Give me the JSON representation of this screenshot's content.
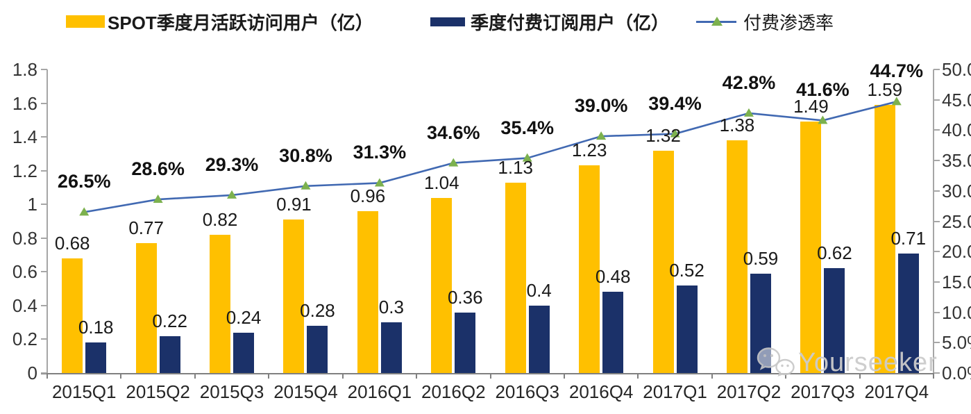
{
  "legend": {
    "items": [
      {
        "label": "SPOT季度月活跃访问用户（亿）",
        "type": "bar",
        "color": "#FFC000"
      },
      {
        "label": "季度付费订阅用户（亿）",
        "type": "bar",
        "color": "#1B3169"
      },
      {
        "label": "付费渗透率",
        "type": "line",
        "color": "#4169B2",
        "marker_color": "#7CB14E"
      }
    ]
  },
  "chart_data": {
    "type": "combo_bar_line",
    "categories": [
      "2015Q1",
      "2015Q2",
      "2015Q3",
      "2015Q4",
      "2016Q1",
      "2016Q2",
      "2016Q3",
      "2016Q4",
      "2017Q1",
      "2017Q2",
      "2017Q3",
      "2017Q4"
    ],
    "series": [
      {
        "name": "SPOT季度月活跃访问用户（亿）",
        "type": "bar",
        "axis": "left",
        "color": "#FFC000",
        "values": [
          0.68,
          0.77,
          0.82,
          0.91,
          0.96,
          1.04,
          1.13,
          1.23,
          1.32,
          1.38,
          1.49,
          1.59
        ],
        "labels": [
          "0.68",
          "0.77",
          "0.82",
          "0.91",
          "0.96",
          "1.04",
          "1.13",
          "1.23",
          "1.32",
          "1.38",
          "1.49",
          "1.59"
        ]
      },
      {
        "name": "季度付费订阅用户（亿）",
        "type": "bar",
        "axis": "left",
        "color": "#1B3169",
        "values": [
          0.18,
          0.22,
          0.24,
          0.28,
          0.3,
          0.36,
          0.4,
          0.48,
          0.52,
          0.59,
          0.62,
          0.71
        ],
        "labels": [
          "0.18",
          "0.22",
          "0.24",
          "0.28",
          "0.3",
          "0.36",
          "0.4",
          "0.48",
          "0.52",
          "0.59",
          "0.62",
          "0.71"
        ]
      },
      {
        "name": "付费渗透率",
        "type": "line",
        "axis": "right",
        "color": "#4169B2",
        "marker": "triangle",
        "marker_color": "#7CB14E",
        "values": [
          26.5,
          28.6,
          29.3,
          30.8,
          31.3,
          34.6,
          35.4,
          39.0,
          39.4,
          42.8,
          41.6,
          44.7
        ],
        "labels": [
          "26.5%",
          "28.6%",
          "29.3%",
          "30.8%",
          "31.3%",
          "34.6%",
          "35.4%",
          "39.0%",
          "39.4%",
          "42.8%",
          "41.6%",
          "44.7%"
        ]
      }
    ],
    "left_axis": {
      "min": 0,
      "max": 1.8,
      "step": 0.2,
      "tick_labels": [
        "0",
        "0.2",
        "0.4",
        "0.6",
        "0.8",
        "1",
        "1.2",
        "1.4",
        "1.6",
        "1.8"
      ]
    },
    "right_axis": {
      "min": 0,
      "max": 50,
      "step": 5,
      "tick_labels": [
        "0.0%",
        "5.0%",
        "10.0%",
        "15.0%",
        "20.0%",
        "25.0%",
        "30.0%",
        "35.0%",
        "40.0%",
        "45.0%",
        "50.0%"
      ]
    },
    "grid": false,
    "legend_position": "top",
    "axis_color": "#A6A6A6",
    "baseline_color": "#808080"
  },
  "watermark": {
    "text": "Yourseeker",
    "icon": "wechat-icon"
  }
}
